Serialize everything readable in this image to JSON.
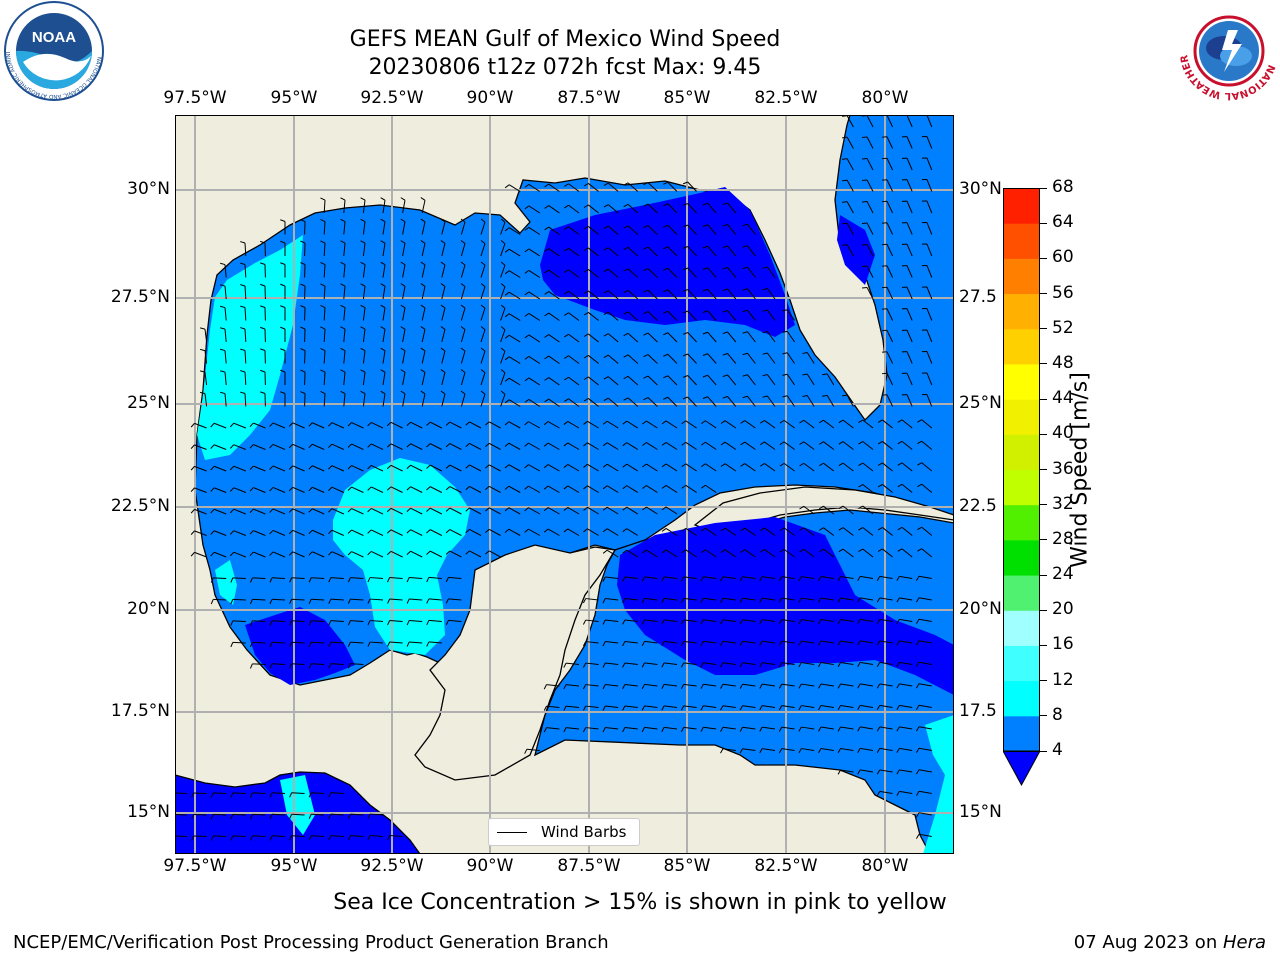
{
  "header": {
    "title_line1": "GEFS MEAN Gulf of Mexico Wind Speed",
    "title_line2": "20230806 t12z 072h fcst   Max: 9.45"
  },
  "logos": {
    "noaa_text": "NOAA",
    "noaa_ring_text": "NATIONAL OCEANIC AND ATMOSPHERIC ADMINISTRATION · U.S. DEPARTMENT OF COMMERCE",
    "nws_ring_text": "NATIONAL WEATHER SERVICE"
  },
  "map": {
    "lon_labels": [
      "97.5°W",
      "95°W",
      "92.5°W",
      "90°W",
      "87.5°W",
      "85°W",
      "82.5°W",
      "80°W"
    ],
    "lat_labels_left": [
      "30°N",
      "27.5°N",
      "25°N",
      "22.5°N",
      "20°N",
      "17.5°N",
      "15°N"
    ],
    "lat_labels_right": [
      "30°N",
      "27.5",
      "25°N",
      "22.5",
      "20°N",
      "17.5",
      "15°N"
    ],
    "legend_label": "Wind Barbs",
    "colors": {
      "land": "#eeedde",
      "water_4": "#0080ff",
      "water_0_4": "#0000ff",
      "water_8": "#00ffff",
      "grid": "#b0b0b0"
    }
  },
  "colorbar": {
    "label": "Wind Speed [m/s]",
    "levels": [
      "4",
      "8",
      "12",
      "16",
      "20",
      "24",
      "28",
      "32",
      "36",
      "40",
      "44",
      "48",
      "52",
      "56",
      "60",
      "64",
      "68"
    ],
    "colors": [
      "#0080ff",
      "#00ffff",
      "#40ffff",
      "#a0ffff",
      "#50f070",
      "#00e000",
      "#50f000",
      "#c0ff00",
      "#d0f000",
      "#f0f000",
      "#ffff00",
      "#ffd000",
      "#ffb000",
      "#ff8000",
      "#ff5000",
      "#ff2000",
      "#ff0000"
    ],
    "extend_color": "#0000ff"
  },
  "caption": "Sea Ice Concentration > 15% is shown in pink to yellow",
  "footer": {
    "left": "NCEP/EMC/Verification Post Processing Product Generation Branch",
    "right_date": "07 Aug 2023 on ",
    "right_host": "Hera"
  }
}
